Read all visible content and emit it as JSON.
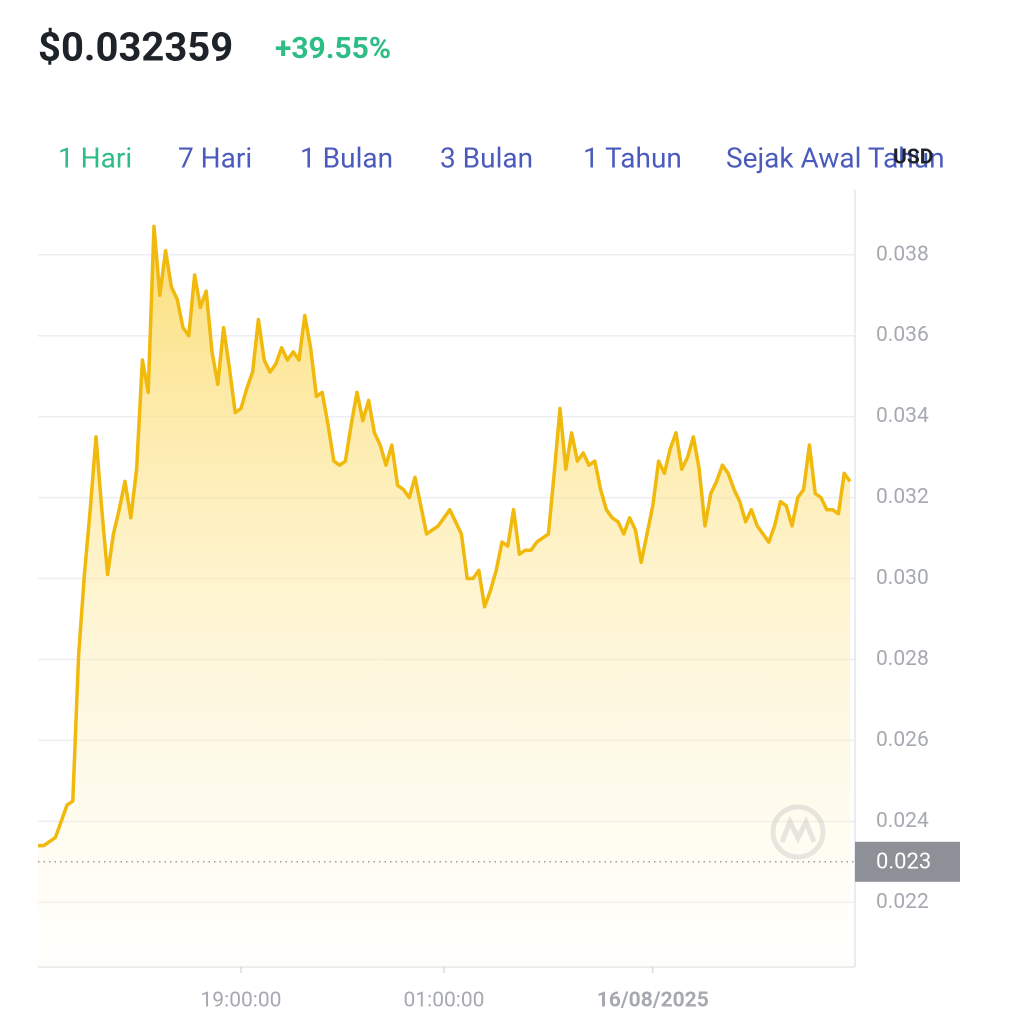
{
  "header": {
    "price": "$0.032359",
    "change": "+39.55%"
  },
  "tabs": [
    {
      "label": "1 Hari",
      "active": true
    },
    {
      "label": "7 Hari",
      "active": false
    },
    {
      "label": "1 Bulan",
      "active": false
    },
    {
      "label": "3 Bulan",
      "active": false
    },
    {
      "label": "1 Tahun",
      "active": false
    },
    {
      "label": "Sejak Awal Tahun",
      "active": false
    }
  ],
  "currency": "USD",
  "chart_data": {
    "type": "line",
    "categories": [
      null,
      null,
      null,
      null,
      null,
      null,
      null,
      null,
      null,
      null,
      null,
      null,
      null,
      null,
      null,
      null,
      null,
      null,
      null,
      null,
      null,
      null,
      null,
      null,
      null,
      null,
      null,
      null,
      null,
      null,
      null,
      null,
      null,
      null,
      null,
      "19:00:00",
      null,
      null,
      null,
      null,
      null,
      null,
      null,
      null,
      null,
      null,
      null,
      null,
      null,
      null,
      null,
      null,
      null,
      null,
      null,
      null,
      null,
      null,
      null,
      null,
      null,
      null,
      null,
      null,
      null,
      null,
      null,
      null,
      null,
      null,
      "01:00:00",
      null,
      null,
      null,
      null,
      null,
      null,
      null,
      null,
      null,
      null,
      null,
      null,
      null,
      null,
      null,
      null,
      null,
      null,
      null,
      null,
      null,
      null,
      null,
      null,
      null,
      null,
      null,
      null,
      null,
      null,
      null,
      null,
      null,
      null,
      null,
      "16/08/2025",
      null,
      null,
      null,
      null,
      null,
      null,
      null,
      null,
      null,
      null,
      null,
      null,
      null,
      null,
      null,
      null,
      null,
      null,
      null,
      null,
      null,
      null,
      null,
      null,
      null,
      null,
      null,
      null,
      null,
      null,
      null,
      null,
      null,
      null
    ],
    "series": [
      {
        "color": "#f0b90b",
        "values": [
          0.0234,
          0.0234,
          0.0235,
          0.0236,
          0.024,
          0.0244,
          0.0245,
          0.0281,
          0.0301,
          0.0317,
          0.0335,
          0.0317,
          0.0301,
          0.0311,
          0.0317,
          0.0324,
          0.0315,
          0.0327,
          0.0354,
          0.0346,
          0.0387,
          0.037,
          0.0381,
          0.0372,
          0.0369,
          0.0362,
          0.036,
          0.0375,
          0.0367,
          0.0371,
          0.0356,
          0.0348,
          0.0362,
          0.0352,
          0.0341,
          0.0342,
          0.0347,
          0.0351,
          0.0364,
          0.0354,
          0.0351,
          0.0353,
          0.0357,
          0.0354,
          0.0356,
          0.0354,
          0.0365,
          0.0357,
          0.0345,
          0.0346,
          0.0338,
          0.0329,
          0.0328,
          0.0329,
          0.0338,
          0.0346,
          0.0339,
          0.0344,
          0.0336,
          0.0333,
          0.0328,
          0.0333,
          0.0323,
          0.0322,
          0.032,
          0.0325,
          0.0318,
          0.0311,
          0.0312,
          0.0313,
          0.0315,
          0.0317,
          0.0314,
          0.0311,
          0.03,
          0.03,
          0.0302,
          0.0293,
          0.0297,
          0.0302,
          0.0309,
          0.0308,
          0.0317,
          0.0306,
          0.0307,
          0.0307,
          0.0309,
          0.031,
          0.0311,
          0.0326,
          0.0342,
          0.0327,
          0.0336,
          0.0329,
          0.0331,
          0.0328,
          0.0329,
          0.0322,
          0.0317,
          0.0315,
          0.0314,
          0.0311,
          0.0315,
          0.0312,
          0.0304,
          0.0311,
          0.0318,
          0.0329,
          0.0326,
          0.0332,
          0.0336,
          0.0327,
          0.033,
          0.0335,
          0.0327,
          0.0313,
          0.0321,
          0.0324,
          0.0328,
          0.0326,
          0.0322,
          0.0319,
          0.0314,
          0.0317,
          0.0313,
          0.0311,
          0.0309,
          0.0313,
          0.0319,
          0.0318,
          0.0313,
          0.032,
          0.0322,
          0.0333,
          0.0321,
          0.032,
          0.0317,
          0.0317,
          0.0316,
          0.0326,
          0.0324
        ]
      }
    ],
    "ylim": [
      0.0204,
      0.0396
    ],
    "yticks": [
      0.022,
      0.024,
      0.026,
      0.028,
      {
        "value": 0.03,
        "label": "0.030"
      },
      0.032,
      0.034,
      0.036,
      0.038
    ],
    "reference": 0.023,
    "grid": true
  }
}
